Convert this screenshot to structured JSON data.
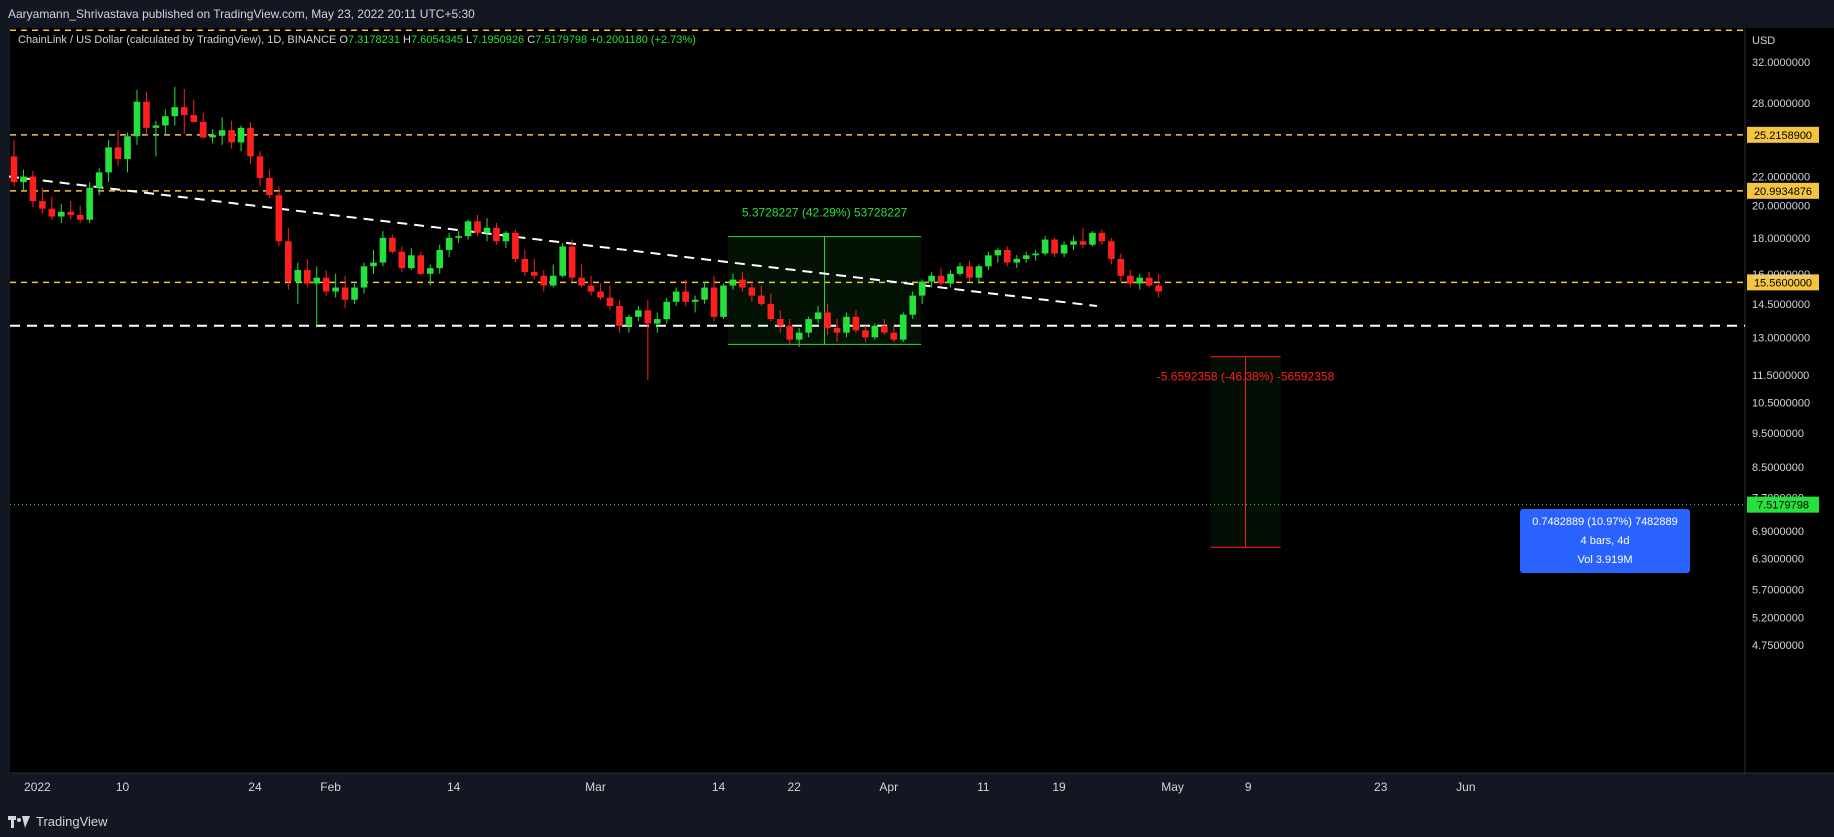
{
  "publisher": "Aaryamann_Shrivastava published on TradingView.com, May 23, 2022 20:11 UTC+5:30",
  "symbol": {
    "name": "ChainLink / US Dollar (calculated by TradingView), 1D, BINANCE",
    "open_label": "O",
    "open": "7.3178231",
    "high_label": "H",
    "high": "7.6054345",
    "low_label": "L",
    "low": "7.1950926",
    "close_label": "C",
    "close": "7.5179798",
    "change": "+0.2001180 (+2.73%)"
  },
  "footer": {
    "brand": "TradingView"
  },
  "colors": {
    "background": "#000000",
    "up": "#26e03c",
    "down": "#ff1f1f",
    "level": "#f5c542",
    "accent": "#2962ff"
  },
  "chart_data": {
    "type": "candlestick",
    "currency": "USD",
    "y_axis": {
      "scale": "log",
      "ylim": [
        4.5,
        36
      ],
      "ticks": [
        "32.0000000",
        "28.0000000",
        "22.0000000",
        "20.0000000",
        "18.0000000",
        "16.0000000",
        "14.5000000",
        "13.0000000",
        "11.5000000",
        "10.5000000",
        "9.5000000",
        "8.5000000",
        "7.7000000",
        "6.9000000",
        "6.3000000",
        "5.7000000",
        "5.2000000",
        "4.7500000"
      ],
      "tick_values": [
        32,
        28,
        22,
        20,
        18,
        16,
        14.5,
        13,
        11.5,
        10.5,
        9.5,
        8.5,
        7.7,
        6.9,
        6.3,
        5.7,
        5.2,
        4.75
      ]
    },
    "x_axis": {
      "labels": [
        "2022",
        "10",
        "24",
        "Feb",
        "14",
        "Mar",
        "14",
        "22",
        "Apr",
        "11",
        "19",
        "May",
        "9",
        "23",
        "Jun"
      ]
    },
    "horizontal_levels": [
      {
        "value": 35.5,
        "label": ""
      },
      {
        "value": 25.21589,
        "label": "25.2158900"
      },
      {
        "value": 20.9934876,
        "label": "20.9934876"
      },
      {
        "value": 15.56,
        "label": "15.5600000"
      }
    ],
    "white_level": 13.5,
    "current_price": {
      "value": 7.5179798,
      "label": "7.5179798"
    },
    "trendline": {
      "from": [
        "2021-12-29",
        22.0
      ],
      "to": [
        "2022-04-23",
        14.4
      ]
    },
    "measurements": [
      {
        "label": "5.3728227 (42.29%) 53728227",
        "from": [
          "2022-03-15",
          12.7
        ],
        "to": [
          "2022-04-04",
          18.07
        ],
        "direction": "up"
      },
      {
        "label": "-5.6592358 (-46.38%) -56592358",
        "from": [
          "2022-05-05",
          12.2
        ],
        "to": [
          "2022-05-12",
          6.54
        ],
        "direction": "down"
      }
    ],
    "measure_tooltip": {
      "line1": "0.7482889 (10.97%) 7482889",
      "line2": "4 bars, 4d",
      "line3": "Vol 3.919M"
    },
    "candles": [
      [
        "2021-12-29",
        23.5,
        24.8,
        21.3,
        21.6
      ],
      [
        "2021-12-30",
        21.6,
        22.5,
        20.9,
        22.0
      ],
      [
        "2021-12-31",
        22.0,
        22.4,
        19.9,
        20.3
      ],
      [
        "2022-01-01",
        20.3,
        21.2,
        19.5,
        19.8
      ],
      [
        "2022-01-02",
        19.8,
        20.6,
        19.1,
        19.3
      ],
      [
        "2022-01-03",
        19.3,
        20.1,
        18.9,
        19.6
      ],
      [
        "2022-01-04",
        19.6,
        20.3,
        19.1,
        19.4
      ],
      [
        "2022-01-05",
        19.4,
        20.0,
        18.9,
        19.1
      ],
      [
        "2022-01-06",
        19.1,
        21.6,
        18.9,
        21.2
      ],
      [
        "2022-01-07",
        21.2,
        22.6,
        20.7,
        22.3
      ],
      [
        "2022-01-08",
        22.3,
        24.8,
        21.6,
        24.2
      ],
      [
        "2022-01-09",
        24.2,
        25.6,
        22.8,
        23.3
      ],
      [
        "2022-01-10",
        23.3,
        25.4,
        22.3,
        25.1
      ],
      [
        "2022-01-11",
        25.1,
        29.2,
        24.4,
        28.1
      ],
      [
        "2022-01-12",
        28.1,
        29.0,
        25.2,
        25.8
      ],
      [
        "2022-01-13",
        25.8,
        26.4,
        23.5,
        26.0
      ],
      [
        "2022-01-14",
        26.0,
        27.4,
        25.2,
        26.8
      ],
      [
        "2022-01-15",
        26.8,
        29.5,
        26.0,
        27.6
      ],
      [
        "2022-01-16",
        27.6,
        29.3,
        25.3,
        26.9
      ],
      [
        "2022-01-17",
        26.9,
        28.3,
        26.2,
        26.3
      ],
      [
        "2022-01-18",
        26.3,
        27.1,
        24.9,
        25.0
      ],
      [
        "2022-01-19",
        25.0,
        25.7,
        24.5,
        25.2
      ],
      [
        "2022-01-20",
        25.2,
        26.7,
        24.4,
        25.6
      ],
      [
        "2022-01-21",
        25.6,
        26.4,
        24.1,
        24.6
      ],
      [
        "2022-01-22",
        24.6,
        26.0,
        23.9,
        25.8
      ],
      [
        "2022-01-23",
        25.8,
        26.3,
        22.9,
        23.5
      ],
      [
        "2022-01-24",
        23.5,
        23.9,
        21.3,
        21.9
      ],
      [
        "2022-01-25",
        21.9,
        22.5,
        20.5,
        20.7
      ],
      [
        "2022-01-26",
        20.7,
        21.3,
        17.5,
        17.8
      ],
      [
        "2022-01-27",
        17.8,
        18.6,
        15.2,
        15.6
      ],
      [
        "2022-01-28",
        15.6,
        16.6,
        14.5,
        16.2
      ],
      [
        "2022-01-29",
        16.2,
        16.8,
        15.3,
        15.5
      ],
      [
        "2022-01-30",
        15.5,
        16.4,
        13.5,
        15.8
      ],
      [
        "2022-01-31",
        15.8,
        16.2,
        14.9,
        15.1
      ],
      [
        "2022-02-01",
        15.1,
        16.0,
        14.8,
        15.3
      ],
      [
        "2022-02-02",
        15.3,
        15.9,
        14.3,
        14.7
      ],
      [
        "2022-02-03",
        14.7,
        15.5,
        14.5,
        15.3
      ],
      [
        "2022-02-04",
        15.3,
        16.6,
        15.0,
        16.4
      ],
      [
        "2022-02-05",
        16.4,
        17.3,
        16.0,
        16.6
      ],
      [
        "2022-02-06",
        16.6,
        18.4,
        16.4,
        18.0
      ],
      [
        "2022-02-07",
        18.0,
        18.2,
        17.1,
        17.2
      ],
      [
        "2022-02-08",
        17.2,
        17.5,
        16.1,
        16.3
      ],
      [
        "2022-02-09",
        16.3,
        17.4,
        16.2,
        17.0
      ],
      [
        "2022-02-10",
        17.0,
        17.2,
        15.9,
        16.0
      ],
      [
        "2022-02-11",
        16.0,
        16.5,
        15.4,
        16.3
      ],
      [
        "2022-02-12",
        16.3,
        17.6,
        16.0,
        17.3
      ],
      [
        "2022-02-13",
        17.3,
        18.3,
        16.9,
        18.0
      ],
      [
        "2022-02-14",
        18.0,
        18.4,
        17.7,
        18.1
      ],
      [
        "2022-02-15",
        18.1,
        19.1,
        17.9,
        19.0
      ],
      [
        "2022-02-16",
        19.0,
        19.4,
        18.1,
        18.3
      ],
      [
        "2022-02-17",
        18.3,
        19.2,
        17.8,
        18.6
      ],
      [
        "2022-02-18",
        18.6,
        18.9,
        17.6,
        17.8
      ],
      [
        "2022-02-19",
        17.8,
        18.4,
        17.4,
        18.3
      ],
      [
        "2022-02-20",
        18.3,
        18.5,
        16.6,
        16.8
      ],
      [
        "2022-02-21",
        16.8,
        17.3,
        15.9,
        16.1
      ],
      [
        "2022-02-22",
        16.1,
        16.8,
        15.7,
        15.9
      ],
      [
        "2022-02-23",
        15.9,
        16.2,
        15.1,
        15.4
      ],
      [
        "2022-02-24",
        15.4,
        16.5,
        15.3,
        15.9
      ],
      [
        "2022-02-25",
        15.9,
        17.7,
        15.8,
        17.5
      ],
      [
        "2022-02-26",
        17.5,
        17.9,
        15.6,
        15.8
      ],
      [
        "2022-02-27",
        15.8,
        16.5,
        15.3,
        15.4
      ],
      [
        "2022-02-28",
        15.4,
        15.9,
        14.9,
        15.1
      ],
      [
        "2022-03-01",
        15.1,
        15.5,
        14.7,
        14.8
      ],
      [
        "2022-03-02",
        14.8,
        15.4,
        14.2,
        14.4
      ],
      [
        "2022-03-03",
        14.4,
        14.7,
        13.2,
        13.5
      ],
      [
        "2022-03-04",
        13.5,
        14.0,
        13.2,
        13.9
      ],
      [
        "2022-03-05",
        13.9,
        14.4,
        13.7,
        14.2
      ],
      [
        "2022-03-06",
        14.2,
        14.7,
        11.3,
        13.6
      ],
      [
        "2022-03-07",
        13.6,
        14.1,
        13.2,
        13.8
      ],
      [
        "2022-03-08",
        13.8,
        14.8,
        13.6,
        14.6
      ],
      [
        "2022-03-09",
        14.6,
        15.3,
        14.4,
        15.1
      ],
      [
        "2022-03-10",
        15.1,
        15.7,
        14.4,
        14.6
      ],
      [
        "2022-03-11",
        14.6,
        14.9,
        14.1,
        14.7
      ],
      [
        "2022-03-12",
        14.7,
        15.6,
        14.5,
        15.3
      ],
      [
        "2022-03-13",
        15.3,
        15.9,
        13.7,
        13.9
      ],
      [
        "2022-03-14",
        13.9,
        15.5,
        13.8,
        15.4
      ],
      [
        "2022-03-15",
        15.4,
        16.0,
        15.2,
        15.7
      ],
      [
        "2022-03-16",
        15.7,
        16.1,
        15.1,
        15.3
      ],
      [
        "2022-03-17",
        15.3,
        15.6,
        14.6,
        14.9
      ],
      [
        "2022-03-18",
        14.9,
        15.4,
        14.4,
        14.5
      ],
      [
        "2022-03-19",
        14.5,
        15.0,
        13.7,
        13.8
      ],
      [
        "2022-03-20",
        13.8,
        14.2,
        13.2,
        13.5
      ],
      [
        "2022-03-21",
        13.5,
        13.8,
        12.7,
        12.9
      ],
      [
        "2022-03-22",
        12.9,
        13.4,
        12.6,
        13.2
      ],
      [
        "2022-03-23",
        13.2,
        13.9,
        13.0,
        13.8
      ],
      [
        "2022-03-24",
        13.8,
        14.4,
        13.6,
        14.1
      ],
      [
        "2022-03-25",
        14.1,
        14.5,
        13.1,
        13.4
      ],
      [
        "2022-03-26",
        13.4,
        13.8,
        12.8,
        13.2
      ],
      [
        "2022-03-27",
        13.2,
        14.1,
        13.0,
        13.9
      ],
      [
        "2022-03-28",
        13.9,
        14.2,
        13.2,
        13.3
      ],
      [
        "2022-03-29",
        13.3,
        13.5,
        12.8,
        13.0
      ],
      [
        "2022-03-30",
        13.0,
        13.6,
        12.9,
        13.5
      ],
      [
        "2022-03-31",
        13.5,
        13.8,
        13.1,
        13.2
      ],
      [
        "2022-04-01",
        13.2,
        13.5,
        12.8,
        12.9
      ],
      [
        "2022-04-02",
        12.9,
        14.1,
        12.8,
        14.0
      ],
      [
        "2022-04-03",
        14.0,
        15.1,
        13.8,
        14.9
      ],
      [
        "2022-04-04",
        14.9,
        15.7,
        14.5,
        15.6
      ],
      [
        "2022-04-05",
        15.6,
        16.1,
        15.3,
        15.9
      ],
      [
        "2022-04-06",
        15.9,
        16.3,
        15.4,
        15.5
      ],
      [
        "2022-04-07",
        15.5,
        16.2,
        15.3,
        16.0
      ],
      [
        "2022-04-08",
        16.0,
        16.6,
        15.9,
        16.4
      ],
      [
        "2022-04-09",
        16.4,
        16.7,
        15.6,
        15.8
      ],
      [
        "2022-04-10",
        15.8,
        16.5,
        15.5,
        16.4
      ],
      [
        "2022-04-11",
        16.4,
        17.2,
        16.2,
        17.0
      ],
      [
        "2022-04-12",
        17.0,
        17.4,
        16.6,
        17.3
      ],
      [
        "2022-04-13",
        17.3,
        17.5,
        16.4,
        16.6
      ],
      [
        "2022-04-14",
        16.6,
        17.0,
        16.3,
        16.8
      ],
      [
        "2022-04-15",
        16.8,
        17.2,
        16.6,
        17.0
      ],
      [
        "2022-04-16",
        17.0,
        17.3,
        16.7,
        17.1
      ],
      [
        "2022-04-17",
        17.1,
        18.1,
        17.0,
        17.9
      ],
      [
        "2022-04-18",
        17.9,
        18.0,
        16.9,
        17.1
      ],
      [
        "2022-04-19",
        17.1,
        17.8,
        16.9,
        17.6
      ],
      [
        "2022-04-20",
        17.6,
        18.1,
        17.3,
        17.8
      ],
      [
        "2022-04-21",
        17.8,
        18.6,
        17.4,
        17.6
      ],
      [
        "2022-04-22",
        17.6,
        18.4,
        17.5,
        18.3
      ],
      [
        "2022-04-23",
        18.3,
        18.5,
        17.6,
        17.8
      ],
      [
        "2022-04-24",
        17.8,
        18.0,
        16.5,
        16.8
      ],
      [
        "2022-04-25",
        16.8,
        17.1,
        15.6,
        15.9
      ],
      [
        "2022-04-26",
        15.9,
        16.2,
        15.3,
        15.5
      ],
      [
        "2022-04-27",
        15.5,
        16.0,
        15.2,
        15.8
      ],
      [
        "2022-04-28",
        15.8,
        16.1,
        15.3,
        15.4
      ],
      [
        "2022-04-29",
        15.4,
        16.0,
        14.8,
        15.1
      ]
    ]
  }
}
